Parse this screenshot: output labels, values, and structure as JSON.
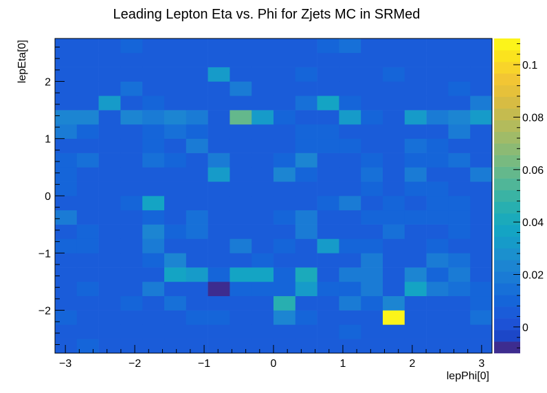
{
  "chart_data": {
    "type": "heatmap",
    "title": "Leading Lepton Eta vs. Phi for Zjets MC in SRMed",
    "xlabel": "lepPhi[0]",
    "ylabel": "lepEta[0]",
    "xlim": [
      -3.15,
      3.15
    ],
    "ylim": [
      -2.75,
      2.75
    ],
    "xbins": 20,
    "ybins": 22,
    "x_ticks": [
      -3,
      -2,
      -1,
      0,
      1,
      2,
      3
    ],
    "x_tick_labels": [
      "−3",
      "−2",
      "−1",
      "0",
      "1",
      "2",
      "3"
    ],
    "y_ticks": [
      -2,
      -1,
      0,
      1,
      2
    ],
    "y_tick_labels": [
      "−2",
      "−1",
      "0",
      "1",
      "2"
    ],
    "zlim": [
      -0.01,
      0.11
    ],
    "z_ticks": [
      0,
      0.02,
      0.04,
      0.06,
      0.08,
      0.1
    ],
    "z_tick_labels": [
      "0",
      "0.02",
      "0.04",
      "0.06",
      "0.08",
      "0.1"
    ],
    "palette": [
      "#3d2c8f",
      "#1c47c8",
      "#1d52d6",
      "#1a5cd9",
      "#1565d9",
      "#1770d8",
      "#1a7bd5",
      "#1c85d2",
      "#1b90ce",
      "#169bc9",
      "#14a4c4",
      "#1baabb",
      "#28afb0",
      "#3ab3a4",
      "#50b698",
      "#64b88c",
      "#78ba80",
      "#8cba74",
      "#a0bb68",
      "#b3bb5c",
      "#c5bb4f",
      "#d7bc43",
      "#e6c13a",
      "#f2c634",
      "#f8d42a",
      "#fbe31e",
      "#fcf41a"
    ],
    "cells": [
      [
        0.005,
        0.012,
        0.005,
        0.005,
        0.005,
        0.005,
        0.005,
        0.005,
        0.005,
        0.005,
        0.005,
        0.005,
        0.005,
        0.005,
        0.005,
        0.005,
        0.005,
        0.005,
        0.005,
        0.005
      ],
      [
        0.005,
        0.005,
        0.005,
        0.005,
        0.005,
        0.005,
        0.005,
        0.005,
        0.005,
        0.005,
        0.005,
        0.005,
        0.005,
        0.01,
        0.005,
        0.005,
        0.005,
        0.005,
        0.005,
        0.005
      ],
      [
        0.012,
        0.005,
        0.005,
        0.005,
        0.005,
        0.005,
        0.01,
        0.01,
        0.005,
        0.005,
        0.025,
        0.01,
        0.005,
        0.005,
        0.005,
        0.108,
        0.005,
        0.005,
        0.005,
        0.015
      ],
      [
        0.005,
        0.005,
        0.005,
        0.01,
        0.005,
        0.015,
        0.005,
        0.005,
        0.005,
        0.005,
        0.045,
        0.005,
        0.005,
        0.02,
        0.01,
        0.025,
        0.005,
        0.005,
        0.005,
        0.012
      ],
      [
        0.005,
        0.012,
        0.005,
        0.005,
        0.02,
        0.005,
        0.005,
        0.005,
        0.01,
        0.01,
        0.01,
        0.03,
        0.01,
        0.01,
        0.02,
        0.005,
        0.038,
        0.02,
        0.015,
        0.01
      ],
      [
        0.005,
        0.005,
        0.005,
        0.005,
        0.005,
        0.035,
        0.03,
        0.01,
        0.035,
        0.035,
        0.01,
        0.04,
        0.005,
        0.02,
        0.02,
        0.005,
        0.025,
        0.01,
        0.02,
        0.005
      ],
      [
        0.005,
        0.005,
        0.005,
        0.005,
        0.01,
        0.025,
        0.005,
        0.005,
        0.005,
        0.01,
        0.005,
        0.005,
        0.005,
        0.005,
        0.02,
        0.005,
        0.005,
        0.02,
        0.015,
        0.005
      ],
      [
        0.012,
        0.012,
        0.005,
        0.005,
        0.02,
        0.005,
        0.005,
        0.005,
        0.02,
        0.005,
        0.01,
        0.005,
        0.03,
        0.01,
        0.01,
        0.005,
        0.005,
        0.01,
        0.005,
        0.005
      ],
      [
        0.005,
        0.012,
        0.005,
        0.005,
        0.025,
        0.01,
        0.015,
        0.005,
        0.005,
        0.005,
        0.005,
        0.02,
        0.005,
        0.005,
        0.005,
        0.015,
        0.005,
        0.005,
        0.01,
        0.005
      ],
      [
        0.02,
        0.005,
        0.005,
        0.005,
        0.01,
        0.005,
        0.015,
        0.005,
        0.005,
        0.005,
        0.01,
        0.02,
        0.005,
        0.005,
        0.01,
        0.01,
        0.01,
        0.01,
        0.01,
        0.005
      ],
      [
        0.005,
        0.005,
        0.005,
        0.01,
        0.035,
        0.005,
        0.005,
        0.005,
        0.005,
        0.005,
        0.005,
        0.005,
        0.01,
        0.02,
        0.005,
        0.01,
        0.005,
        0.01,
        0.01,
        0.005
      ],
      [
        0.01,
        0.005,
        0.005,
        0.005,
        0.005,
        0.005,
        0.005,
        0.005,
        0.005,
        0.005,
        0.005,
        0.005,
        0.005,
        0.005,
        0.01,
        0.005,
        0.01,
        0.01,
        0.005,
        0.005
      ],
      [
        0.01,
        0.005,
        0.005,
        0.005,
        0.005,
        0.005,
        0.005,
        0.03,
        0.005,
        0.005,
        0.025,
        0.01,
        0.005,
        0.005,
        0.015,
        0.005,
        0.02,
        0.005,
        0.005,
        0.02
      ],
      [
        0.01,
        0.015,
        0.005,
        0.005,
        0.015,
        0.01,
        0.005,
        0.02,
        0.005,
        0.005,
        0.01,
        0.025,
        0.005,
        0.005,
        0.01,
        0.005,
        0.01,
        0.01,
        0.015,
        0.005
      ],
      [
        0.005,
        0.005,
        0.005,
        0.005,
        0.01,
        0.005,
        0.02,
        0.005,
        0.005,
        0.005,
        0.005,
        0.01,
        0.01,
        0.01,
        0.005,
        0.005,
        0.015,
        0.01,
        0.005,
        0.005
      ],
      [
        0.02,
        0.01,
        0.005,
        0.005,
        0.01,
        0.015,
        0.01,
        0.005,
        0.005,
        0.005,
        0.005,
        0.01,
        0.01,
        0.005,
        0.005,
        0.005,
        0.005,
        0.005,
        0.02,
        0.005
      ],
      [
        0.025,
        0.025,
        0.005,
        0.025,
        0.02,
        0.025,
        0.02,
        0.005,
        0.06,
        0.03,
        0.01,
        0.005,
        0.005,
        0.03,
        0.01,
        0.005,
        0.03,
        0.02,
        0.025,
        0.03
      ],
      [
        0.005,
        0.005,
        0.03,
        0.005,
        0.01,
        0.005,
        0.005,
        0.005,
        0.005,
        0.005,
        0.005,
        0.015,
        0.035,
        0.01,
        0.005,
        0.005,
        0.005,
        0.005,
        0.005,
        0.02
      ],
      [
        0.005,
        0.005,
        0.005,
        0.015,
        0.005,
        0.005,
        0.005,
        0.005,
        0.02,
        0.005,
        0.005,
        0.005,
        0.005,
        0.005,
        0.005,
        0.005,
        0.005,
        0.005,
        0.012,
        0.005
      ],
      [
        0.005,
        0.005,
        0.005,
        0.005,
        0.005,
        0.005,
        0.005,
        0.03,
        0.005,
        0.005,
        0.005,
        0.012,
        0.005,
        0.005,
        0.005,
        0.012,
        0.005,
        0.005,
        0.005,
        0.005
      ],
      [
        0.005,
        0.005,
        0.005,
        0.005,
        0.005,
        0.005,
        0.005,
        0.005,
        0.005,
        0.005,
        0.005,
        0.005,
        0.005,
        0.005,
        0.005,
        0.005,
        0.005,
        0.005,
        0.005,
        0.005
      ],
      [
        0.005,
        0.005,
        0.005,
        0.012,
        0.005,
        0.005,
        0.005,
        0.005,
        0.005,
        0.005,
        0.005,
        0.005,
        0.012,
        0.015,
        0.005,
        0.005,
        0.005,
        0.005,
        0.005,
        0.005
      ]
    ],
    "special_cells": [
      {
        "xbin": 7,
        "ybin": 4,
        "value": -0.01
      }
    ]
  }
}
